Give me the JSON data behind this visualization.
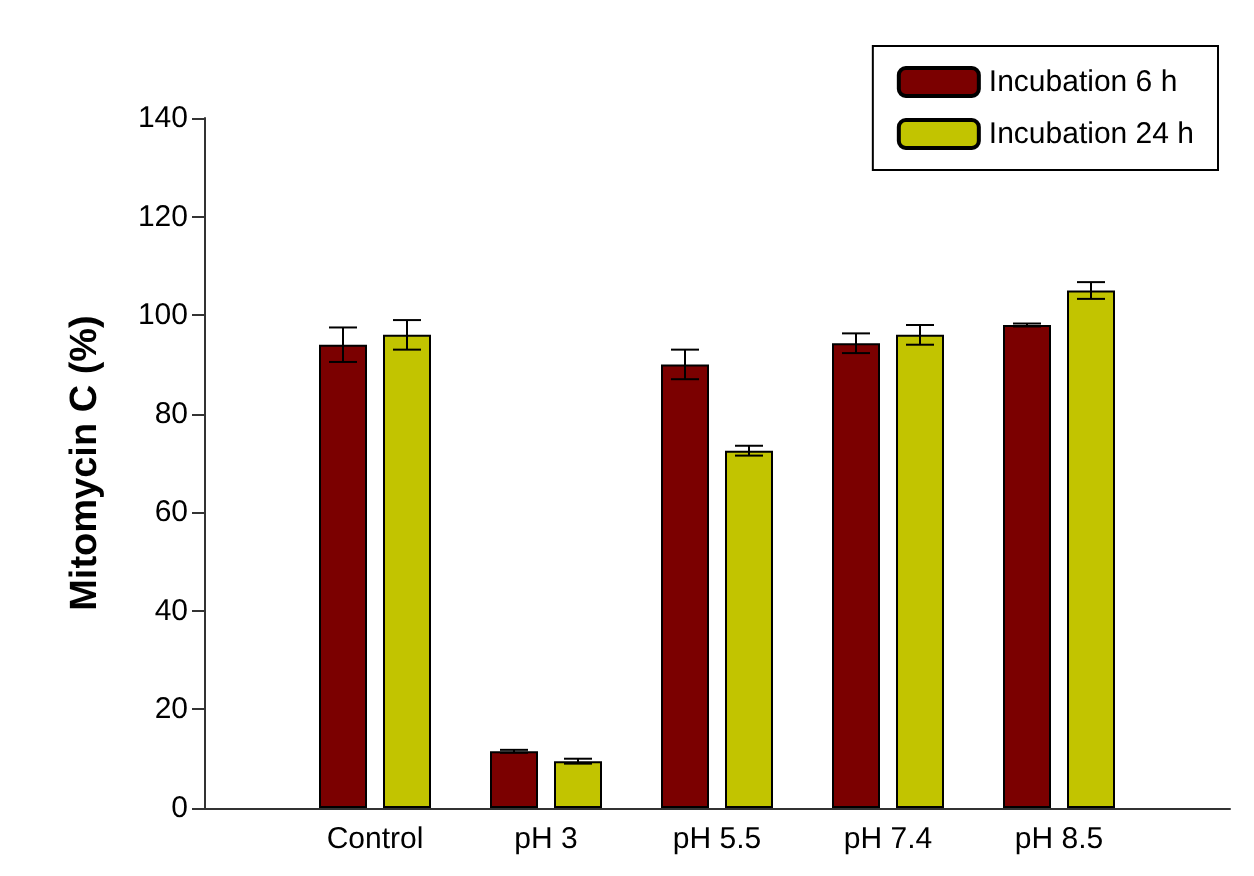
{
  "chart_data": {
    "type": "bar",
    "ylabel": "Mitomycin C (%)",
    "categories": [
      null,
      "Control",
      "pH 3",
      "pH 5.5",
      "pH 7.4",
      "pH 8.5",
      null
    ],
    "series": [
      {
        "name": "Incubation 6 h",
        "color": "#7b0000",
        "values": [
          null,
          94,
          11.5,
          90,
          94.3,
          98,
          null
        ],
        "errors": [
          null,
          3.5,
          0.3,
          3,
          2,
          0.3,
          null
        ]
      },
      {
        "name": "Incubation 24 h",
        "color": "#c2c400",
        "values": [
          null,
          96,
          9.5,
          72.5,
          96,
          105,
          null
        ],
        "errors": [
          null,
          3,
          0.5,
          1,
          2,
          1.7,
          null
        ]
      }
    ],
    "ylim": [
      0,
      140
    ],
    "yticks": [
      0,
      20,
      40,
      60,
      80,
      100,
      120,
      140
    ],
    "grid": false,
    "legend": "top right"
  }
}
